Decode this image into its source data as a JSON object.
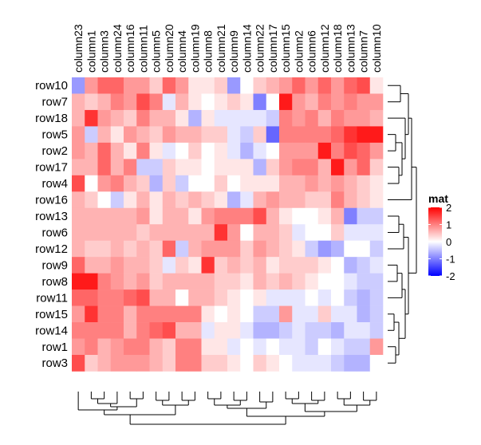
{
  "chart_data": {
    "type": "heatmap",
    "title": "",
    "columns": [
      "column23",
      "column1",
      "column3",
      "column24",
      "column16",
      "column11",
      "column5",
      "column20",
      "column4",
      "column19",
      "column8",
      "column21",
      "column9",
      "column14",
      "column22",
      "column17",
      "column15",
      "column2",
      "column6",
      "column12",
      "column18",
      "column13",
      "column7",
      "column10"
    ],
    "rows": [
      "row10",
      "row7",
      "row18",
      "row5",
      "row2",
      "row17",
      "row4",
      "row16",
      "row13",
      "row6",
      "row12",
      "row9",
      "row8",
      "row11",
      "row15",
      "row14",
      "row1",
      "row3"
    ],
    "values": [
      [
        -0.8,
        0.8,
        1.2,
        1.2,
        0.8,
        0.8,
        0.4,
        1.2,
        0.8,
        0.2,
        0.2,
        0.4,
        -0.8,
        0.0,
        0.4,
        0.6,
        0.8,
        1.2,
        0.8,
        1.2,
        0.8,
        1.2,
        1.4,
        0.2
      ],
      [
        0.6,
        0.4,
        0.6,
        1.0,
        0.8,
        1.4,
        1.0,
        -0.2,
        0.6,
        0.2,
        0.0,
        0.2,
        0.4,
        0.2,
        -1.0,
        0.0,
        1.8,
        0.8,
        0.6,
        1.0,
        0.8,
        1.0,
        0.8,
        0.8
      ],
      [
        0.6,
        1.6,
        0.8,
        0.6,
        0.4,
        1.0,
        0.6,
        0.6,
        0.2,
        -0.6,
        0.2,
        -0.2,
        -0.2,
        -0.2,
        -0.2,
        -0.4,
        1.0,
        0.8,
        1.0,
        0.6,
        1.0,
        0.8,
        0.8,
        0.6
      ],
      [
        0.8,
        -0.4,
        0.6,
        0.2,
        0.8,
        0.6,
        0.4,
        0.8,
        0.6,
        0.6,
        0.4,
        0.4,
        -0.2,
        -0.4,
        0.4,
        -1.2,
        1.0,
        1.0,
        1.0,
        1.0,
        1.2,
        1.6,
        1.8,
        1.8
      ],
      [
        0.8,
        0.6,
        1.2,
        0.6,
        0.2,
        1.0,
        0.2,
        -0.2,
        0.0,
        0.4,
        0.0,
        0.2,
        -0.2,
        -0.6,
        -0.2,
        0.0,
        0.8,
        0.8,
        0.8,
        1.8,
        1.0,
        1.4,
        1.2,
        0.8
      ],
      [
        0.6,
        0.6,
        1.2,
        0.6,
        1.0,
        -0.4,
        -0.4,
        0.4,
        0.2,
        0.2,
        0.0,
        0.2,
        0.2,
        0.2,
        -0.6,
        0.4,
        0.8,
        1.0,
        1.0,
        0.6,
        1.8,
        0.8,
        1.2,
        0.4
      ],
      [
        1.4,
        0.0,
        0.8,
        1.0,
        0.6,
        0.4,
        -0.6,
        0.4,
        -0.4,
        0.0,
        0.0,
        0.4,
        0.0,
        0.2,
        0.2,
        0.2,
        0.6,
        0.6,
        0.8,
        0.6,
        0.8,
        0.6,
        0.4,
        0.2
      ],
      [
        0.6,
        0.4,
        0.0,
        -0.4,
        0.2,
        0.6,
        0.2,
        0.6,
        0.4,
        0.6,
        0.4,
        0.2,
        -0.6,
        -0.2,
        0.6,
        0.8,
        0.6,
        0.6,
        0.4,
        0.4,
        1.0,
        0.6,
        0.4,
        0.2
      ],
      [
        0.6,
        0.6,
        0.6,
        0.6,
        0.6,
        0.8,
        0.2,
        0.6,
        0.6,
        0.2,
        0.8,
        1.0,
        1.0,
        1.0,
        1.4,
        0.6,
        0.2,
        0.0,
        0.0,
        0.2,
        0.6,
        -1.0,
        -0.4,
        -0.4
      ],
      [
        0.6,
        0.6,
        0.6,
        0.6,
        0.6,
        0.4,
        0.6,
        0.6,
        0.6,
        0.6,
        0.6,
        1.6,
        0.8,
        0.0,
        0.6,
        0.6,
        0.4,
        -0.2,
        0.0,
        0.0,
        0.4,
        -0.2,
        -0.2,
        -0.2
      ],
      [
        0.6,
        0.4,
        0.4,
        0.6,
        0.4,
        0.6,
        0.4,
        1.2,
        -0.4,
        0.6,
        0.8,
        0.8,
        0.8,
        0.4,
        0.8,
        0.6,
        0.4,
        0.2,
        -0.4,
        -0.8,
        -0.6,
        0.0,
        0.0,
        -0.4
      ],
      [
        1.2,
        0.6,
        0.6,
        0.8,
        0.6,
        0.6,
        0.4,
        -0.2,
        0.4,
        0.2,
        1.6,
        0.4,
        0.6,
        0.4,
        0.6,
        0.2,
        0.4,
        0.4,
        0.4,
        0.2,
        0.0,
        -0.6,
        -0.4,
        -0.2
      ],
      [
        1.8,
        1.8,
        1.0,
        0.8,
        0.6,
        0.8,
        0.4,
        0.6,
        0.6,
        0.6,
        0.6,
        0.4,
        0.4,
        0.2,
        0.6,
        0.4,
        0.6,
        0.4,
        0.2,
        0.0,
        0.0,
        -0.2,
        -0.4,
        -0.4
      ],
      [
        1.2,
        1.2,
        1.0,
        1.0,
        1.2,
        1.4,
        0.6,
        0.6,
        0.0,
        0.6,
        0.6,
        0.4,
        0.2,
        0.0,
        0.2,
        -0.2,
        -0.2,
        -0.2,
        0.0,
        -0.2,
        0.0,
        -0.4,
        -0.6,
        -0.4
      ],
      [
        0.8,
        1.6,
        1.0,
        1.0,
        0.6,
        1.0,
        1.0,
        1.0,
        1.0,
        1.0,
        0.2,
        0.0,
        0.2,
        0.0,
        -0.4,
        -0.4,
        0.8,
        -0.2,
        -0.2,
        0.4,
        -0.2,
        -0.2,
        -0.6,
        -0.4
      ],
      [
        1.0,
        1.0,
        1.0,
        1.0,
        0.6,
        1.0,
        1.2,
        1.4,
        0.6,
        0.6,
        -0.2,
        0.2,
        0.2,
        -0.2,
        -0.6,
        -0.6,
        -0.4,
        -0.2,
        -0.4,
        -0.4,
        -0.6,
        -0.2,
        -0.2,
        -0.4
      ],
      [
        0.8,
        1.0,
        0.6,
        0.8,
        1.0,
        1.0,
        0.6,
        0.4,
        1.0,
        1.0,
        0.2,
        0.2,
        -0.2,
        0.0,
        -0.2,
        0.0,
        -0.2,
        -0.2,
        -0.4,
        0.0,
        -0.2,
        -0.4,
        -0.4,
        0.8
      ],
      [
        1.4,
        0.4,
        0.6,
        0.8,
        0.8,
        0.8,
        0.6,
        0.4,
        1.0,
        1.0,
        0.4,
        0.4,
        0.2,
        0.0,
        0.4,
        0.2,
        0.0,
        -0.2,
        -0.2,
        -0.2,
        -0.4,
        -0.6,
        -0.6,
        0.0
      ]
    ],
    "legend": {
      "title": "mat",
      "ticks": [
        2,
        1,
        0,
        -1,
        -2
      ],
      "range": [
        -2,
        2
      ],
      "colors": {
        "low": "#0000FF",
        "mid": "#FFFFFF",
        "high": "#FF0000"
      },
      "placement": "right"
    },
    "row_dendrogram": "right",
    "column_dendrogram": "bottom"
  }
}
